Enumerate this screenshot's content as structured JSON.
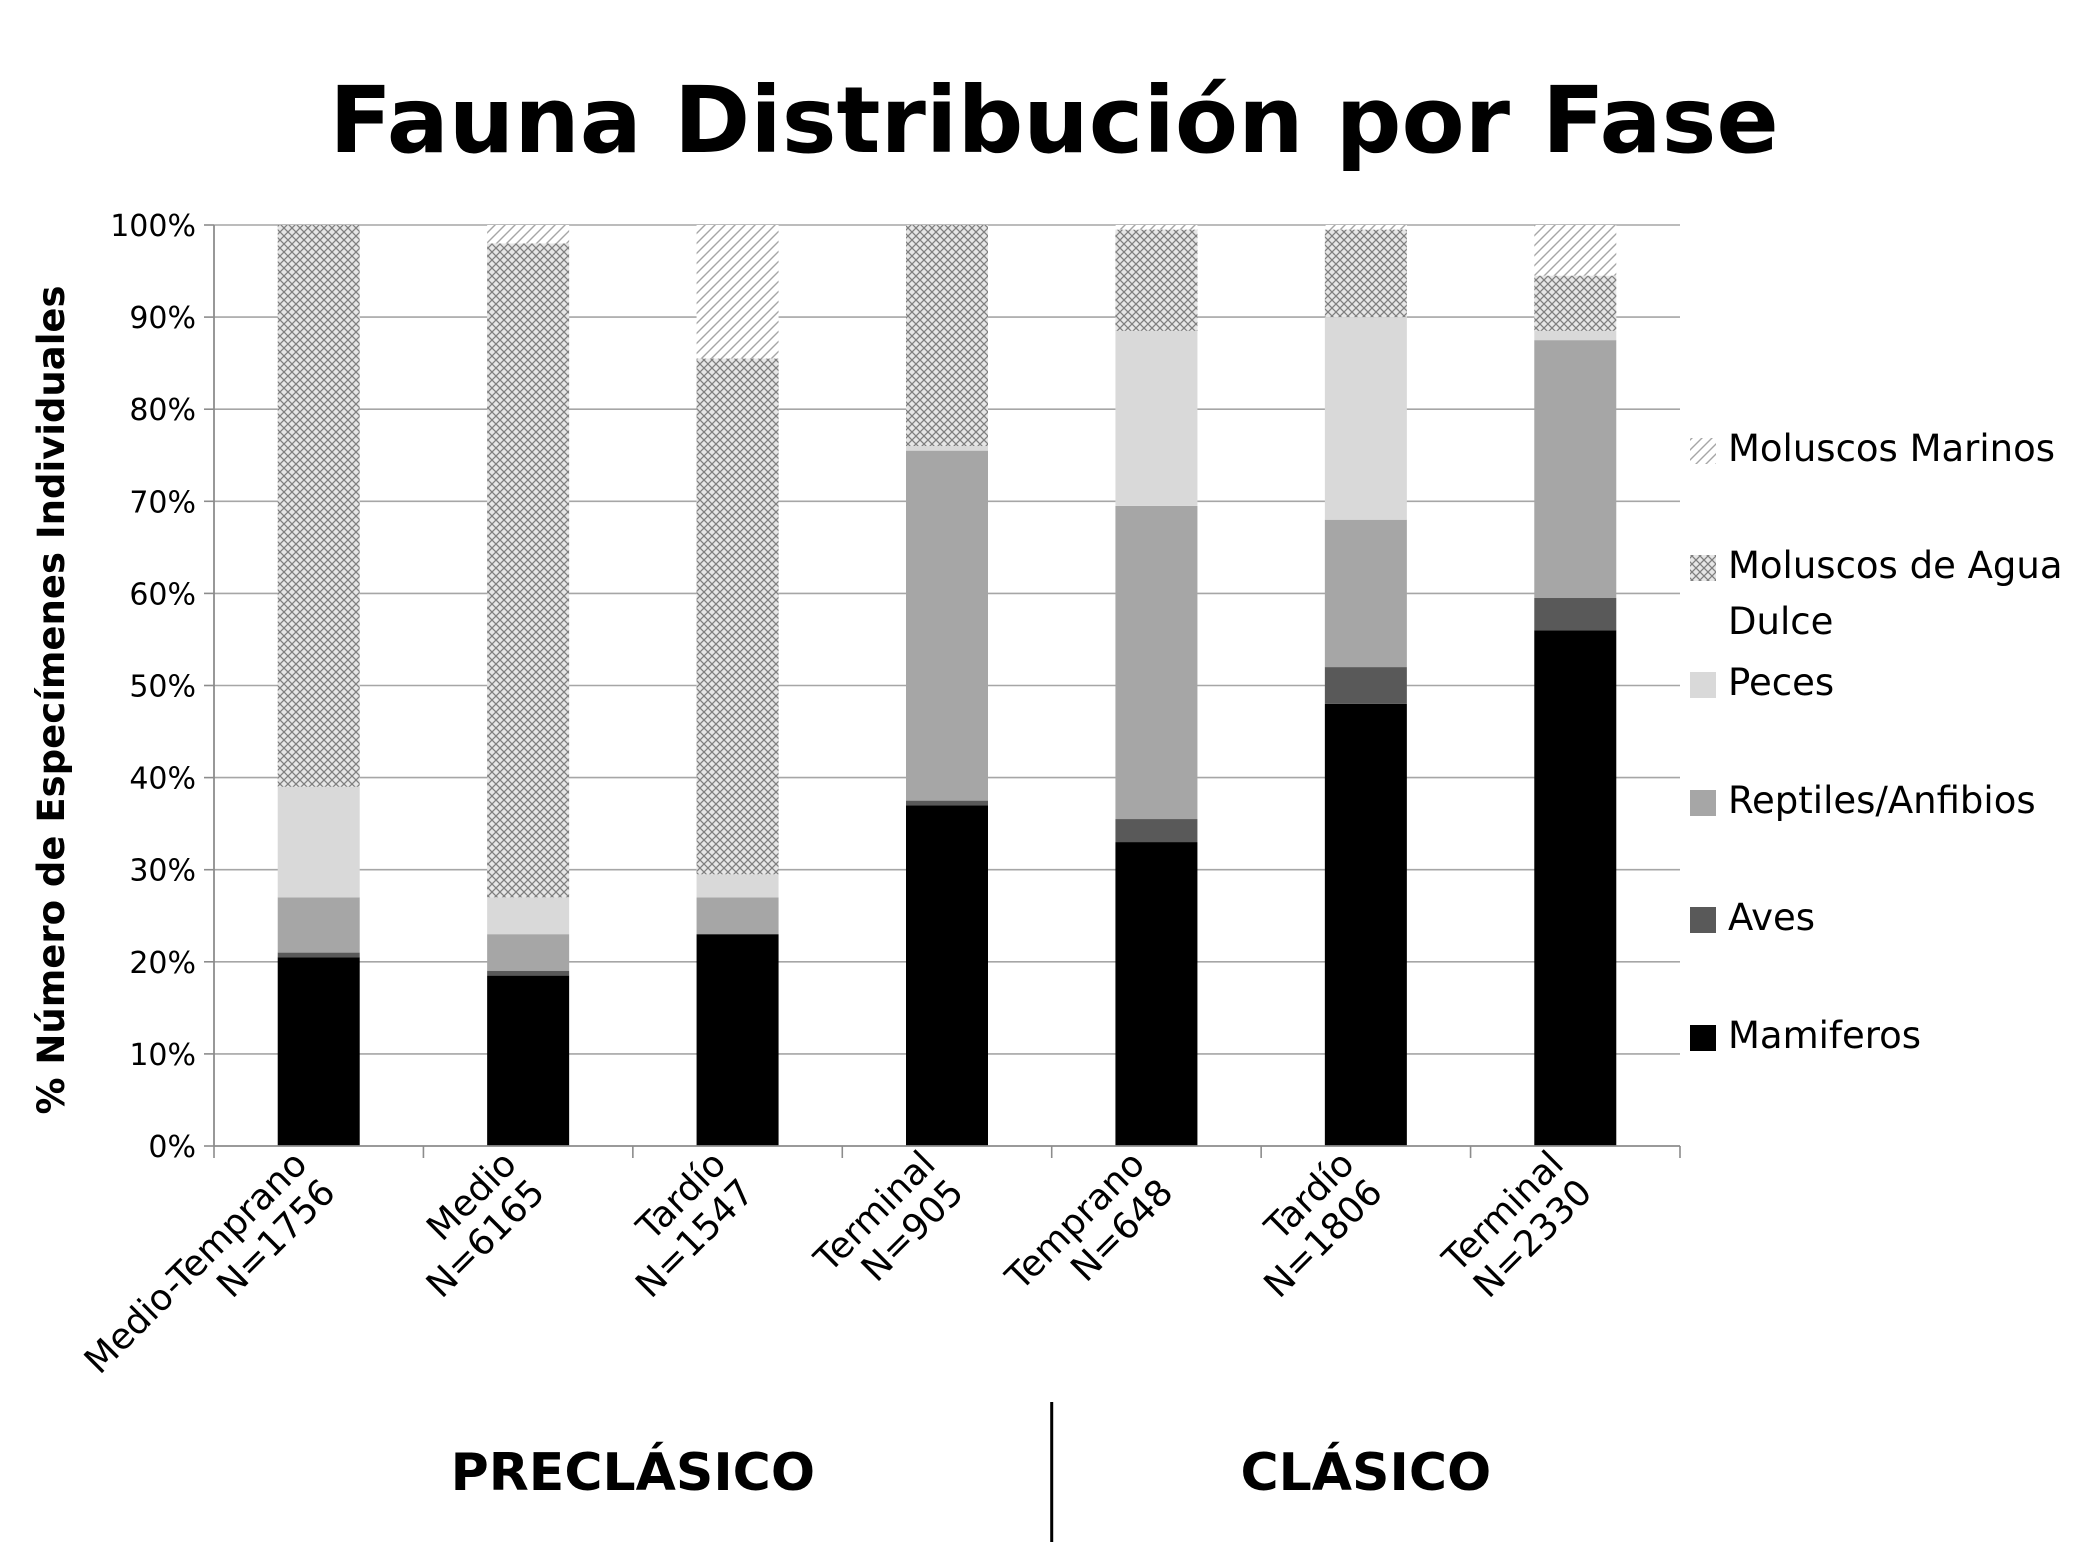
{
  "chart_data": {
    "type": "bar",
    "stacked": true,
    "title": "Fauna Distribución por Fase",
    "ylabel": "% Número de Especímenes Individuales",
    "ylim": [
      0,
      100
    ],
    "yticks": [
      "0%",
      "10%",
      "20%",
      "30%",
      "40%",
      "50%",
      "60%",
      "70%",
      "80%",
      "90%",
      "100%"
    ],
    "grid": true,
    "legend_position": "right",
    "categories": [
      [
        "Medio-Temprano",
        "N=1756"
      ],
      [
        "Medio",
        "N=6165"
      ],
      [
        "Tardío",
        "N=1547"
      ],
      [
        "Terminal",
        "N=905"
      ],
      [
        "Temprano",
        "N=648"
      ],
      [
        "Tardío",
        "N=1806"
      ],
      [
        "Terminal",
        "N=2330"
      ]
    ],
    "groups": [
      {
        "label": "PRECLÁSICO",
        "categories": [
          0,
          1,
          2,
          3
        ]
      },
      {
        "label": "CLÁSICO",
        "categories": [
          4,
          5,
          6
        ]
      }
    ],
    "series": [
      {
        "name": "Mamiferos",
        "color": "#000000",
        "pattern": "solid",
        "values": [
          20.5,
          18.5,
          23,
          37,
          33,
          48,
          56
        ]
      },
      {
        "name": "Aves",
        "color": "#595959",
        "pattern": "solid",
        "values": [
          0.5,
          0.5,
          0,
          0.5,
          2.5,
          4,
          3.5
        ]
      },
      {
        "name": "Reptiles/Anfibios",
        "color": "#a6a6a6",
        "pattern": "solid",
        "values": [
          6,
          4,
          4,
          38,
          34,
          16,
          28
        ]
      },
      {
        "name": "Peces",
        "color": "#d9d9d9",
        "pattern": "solid",
        "values": [
          12,
          4,
          2.5,
          0.5,
          19,
          22,
          1
        ]
      },
      {
        "name": "Moluscos de Agua Dulce",
        "color": "#bfbfbf",
        "pattern": "crosshatch",
        "values": [
          61,
          71,
          56,
          24,
          11,
          9.5,
          6
        ]
      },
      {
        "name": "Moluscos Marinos",
        "color": "#bfbfbf",
        "pattern": "diagonal",
        "values": [
          0,
          2,
          14.5,
          0,
          0.5,
          0.5,
          5.5
        ]
      }
    ]
  }
}
